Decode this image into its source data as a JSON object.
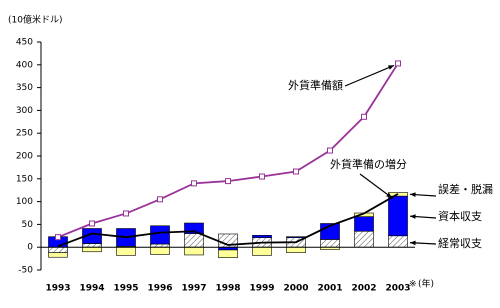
{
  "chart_data": {
    "type": "bar",
    "y_axis_label": "(10億米ドル)",
    "x_axis_unit": "(年)",
    "x_note_mark": "※",
    "categories": [
      "1993",
      "1994",
      "1995",
      "1996",
      "1997",
      "1998",
      "1999",
      "2000",
      "2001",
      "2002",
      "2003"
    ],
    "ylim": [
      -50,
      450
    ],
    "yticks": [
      -50,
      0,
      50,
      100,
      150,
      200,
      250,
      300,
      350,
      400,
      450
    ],
    "grid": false,
    "series": [
      {
        "name": "経常収支",
        "type": "bar",
        "color": "#808080",
        "pattern": "hatch",
        "values": [
          -12,
          8,
          2,
          7,
          30,
          29,
          21,
          21,
          17,
          35,
          25
        ]
      },
      {
        "name": "資本収支",
        "type": "bar",
        "color": "#0000ff",
        "values": [
          23,
          33,
          39,
          40,
          23,
          -6,
          5,
          2,
          35,
          32,
          87
        ]
      },
      {
        "name": "誤差・脱漏",
        "type": "bar",
        "color": "#ffff99",
        "values": [
          -10,
          -10,
          -18,
          -16,
          -17,
          -17,
          -18,
          -12,
          -5,
          8,
          8
        ]
      },
      {
        "name": "外貨準備額",
        "type": "line",
        "color": "#993399",
        "marker": "square",
        "values": [
          22,
          52,
          74,
          105,
          140,
          145,
          155,
          166,
          212,
          286,
          403
        ]
      },
      {
        "name": "外貨準備の増分",
        "type": "line",
        "color": "#000000",
        "values": [
          2,
          30,
          22,
          32,
          35,
          5,
          10,
          11,
          47,
          74,
          117
        ]
      }
    ]
  }
}
